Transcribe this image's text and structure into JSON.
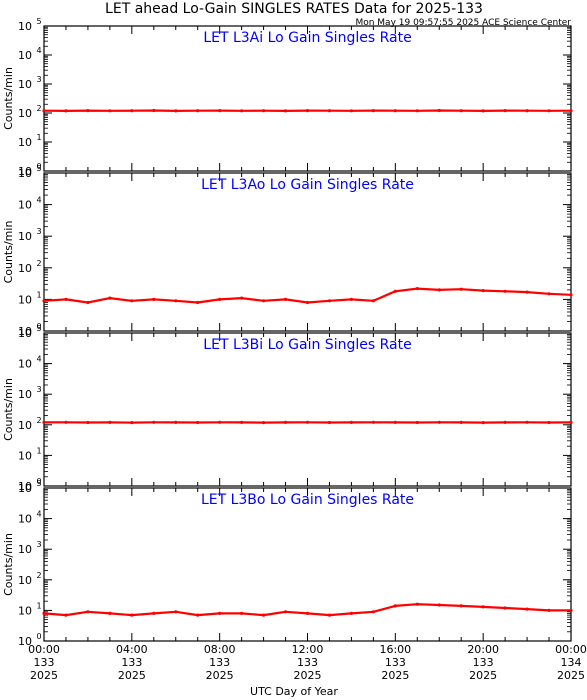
{
  "header": {
    "title": "LET ahead Lo-Gain SINGLES RATES Data for 2025-133",
    "timestamp": "Mon May 19 09:57:55 2025 ACE Science Center"
  },
  "x_axis": {
    "label": "UTC Day of Year",
    "ticks": [
      {
        "time": "00:00",
        "doy": "133",
        "year": "2025"
      },
      {
        "time": "04:00",
        "doy": "133",
        "year": "2025"
      },
      {
        "time": "08:00",
        "doy": "133",
        "year": "2025"
      },
      {
        "time": "12:00",
        "doy": "133",
        "year": "2025"
      },
      {
        "time": "16:00",
        "doy": "133",
        "year": "2025"
      },
      {
        "time": "20:00",
        "doy": "133",
        "year": "2025"
      },
      {
        "time": "00:00",
        "doy": "134",
        "year": "2025"
      }
    ]
  },
  "colors": {
    "series": "#ff0000",
    "panel_title": "#0000ff",
    "axes": "#000000"
  },
  "chart_data": [
    {
      "type": "line",
      "title": "LET L3Ai Lo Gain Singles Rate",
      "ylabel": "Counts/min",
      "yscale": "log",
      "ylim": [
        1,
        100000
      ],
      "ytick_labels": [
        "10^0",
        "10^1",
        "10^2",
        "10^3",
        "10^4",
        "10^5"
      ],
      "xlim_hours": [
        0,
        24
      ],
      "grid": false,
      "series": [
        {
          "color": "#ff0000",
          "x_hours": [
            0,
            1,
            2,
            3,
            4,
            5,
            6,
            7,
            8,
            9,
            10,
            11,
            12,
            13,
            14,
            15,
            16,
            17,
            18,
            19,
            20,
            21,
            22,
            23,
            24
          ],
          "values": [
            120,
            118,
            121,
            119,
            120,
            122,
            118,
            120,
            121,
            119,
            120,
            118,
            121,
            120,
            119,
            121,
            120,
            119,
            122,
            120,
            118,
            121,
            120,
            119,
            120
          ]
        }
      ]
    },
    {
      "type": "line",
      "title": "LET L3Ao Lo Gain Singles Rate",
      "ylabel": "Counts/min",
      "yscale": "log",
      "ylim": [
        1,
        100000
      ],
      "ytick_labels": [
        "10^0",
        "10^1",
        "10^2",
        "10^3",
        "10^4",
        "10^5"
      ],
      "xlim_hours": [
        0,
        24
      ],
      "grid": false,
      "series": [
        {
          "color": "#ff0000",
          "x_hours": [
            0,
            1,
            2,
            3,
            4,
            5,
            6,
            7,
            8,
            9,
            10,
            11,
            12,
            13,
            14,
            15,
            16,
            17,
            18,
            19,
            20,
            21,
            22,
            23,
            24
          ],
          "values": [
            9,
            10,
            8,
            11,
            9,
            10,
            9,
            8,
            10,
            11,
            9,
            10,
            8,
            9,
            10,
            9,
            18,
            22,
            20,
            21,
            19,
            18,
            17,
            15,
            14
          ]
        }
      ]
    },
    {
      "type": "line",
      "title": "LET L3Bi Lo Gain Singles Rate",
      "ylabel": "Counts/min",
      "yscale": "log",
      "ylim": [
        1,
        100000
      ],
      "ytick_labels": [
        "10^0",
        "10^1",
        "10^2",
        "10^3",
        "10^4",
        "10^5"
      ],
      "xlim_hours": [
        0,
        24
      ],
      "grid": false,
      "series": [
        {
          "color": "#ff0000",
          "x_hours": [
            0,
            1,
            2,
            3,
            4,
            5,
            6,
            7,
            8,
            9,
            10,
            11,
            12,
            13,
            14,
            15,
            16,
            17,
            18,
            19,
            20,
            21,
            22,
            23,
            24
          ],
          "values": [
            120,
            121,
            119,
            120,
            118,
            121,
            120,
            119,
            121,
            120,
            118,
            120,
            121,
            119,
            120,
            121,
            120,
            119,
            121,
            120,
            118,
            120,
            121,
            119,
            120
          ]
        }
      ]
    },
    {
      "type": "line",
      "title": "LET L3Bo Lo Gain Singles Rate",
      "ylabel": "Counts/min",
      "yscale": "log",
      "ylim": [
        1,
        100000
      ],
      "ytick_labels": [
        "10^0",
        "10^1",
        "10^2",
        "10^3",
        "10^4",
        "10^5"
      ],
      "xlim_hours": [
        0,
        24
      ],
      "grid": false,
      "series": [
        {
          "color": "#ff0000",
          "x_hours": [
            0,
            1,
            2,
            3,
            4,
            5,
            6,
            7,
            8,
            9,
            10,
            11,
            12,
            13,
            14,
            15,
            16,
            17,
            18,
            19,
            20,
            21,
            22,
            23,
            24
          ],
          "values": [
            8,
            7,
            9,
            8,
            7,
            8,
            9,
            7,
            8,
            8,
            7,
            9,
            8,
            7,
            8,
            9,
            14,
            16,
            15,
            14,
            13,
            12,
            11,
            10,
            10
          ]
        }
      ]
    }
  ]
}
